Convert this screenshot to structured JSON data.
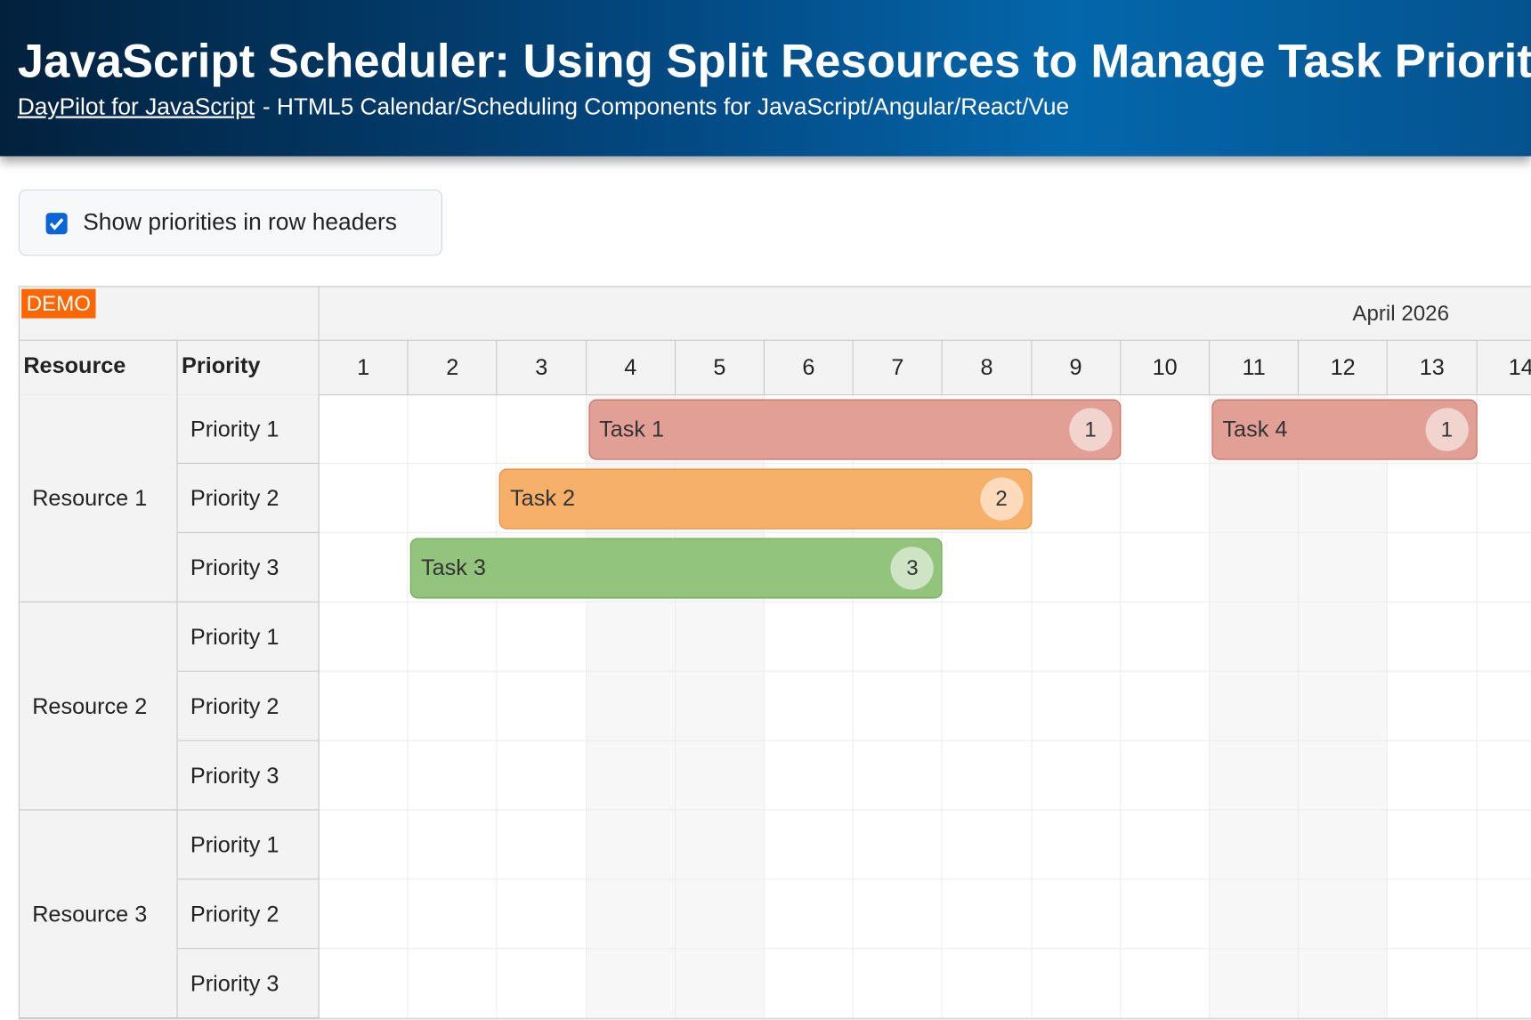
{
  "header": {
    "title": "JavaScript Scheduler: Using Split Resources to Manage Task Priorities",
    "link": "DayPilot for JavaScript",
    "tagline": "- HTML5 Calendar/Scheduling Components for JavaScript/Angular/React/Vue"
  },
  "options": {
    "show_priorities": "Show priorities in row headers"
  },
  "scheduler": {
    "demo": "DEMO",
    "month": "April 2026",
    "columns": [
      "Resource",
      "Priority"
    ],
    "days": [
      "1",
      "2",
      "3",
      "4",
      "5",
      "6",
      "7",
      "8",
      "9",
      "10",
      "11",
      "12",
      "13",
      "14"
    ],
    "resources": [
      {
        "name": "Resource 1",
        "rows": [
          {
            "priority": "Priority 1",
            "tasks": [
              {
                "text": "Task 1",
                "badge": "1"
              },
              {
                "text": "Task 4",
                "badge": "1"
              }
            ]
          },
          {
            "priority": "Priority 2",
            "tasks": [
              {
                "text": "Task 2",
                "badge": "2"
              }
            ]
          },
          {
            "priority": "Priority 3",
            "tasks": [
              {
                "text": "Task 3",
                "badge": "3"
              }
            ]
          }
        ]
      },
      {
        "name": "Resource 2",
        "rows": [
          {
            "priority": "Priority 1",
            "tasks": []
          },
          {
            "priority": "Priority 2",
            "tasks": []
          },
          {
            "priority": "Priority 3",
            "tasks": []
          }
        ]
      },
      {
        "name": "Resource 3",
        "rows": [
          {
            "priority": "Priority 1",
            "tasks": []
          },
          {
            "priority": "Priority 2",
            "tasks": []
          },
          {
            "priority": "Priority 3",
            "tasks": []
          }
        ]
      }
    ]
  }
}
